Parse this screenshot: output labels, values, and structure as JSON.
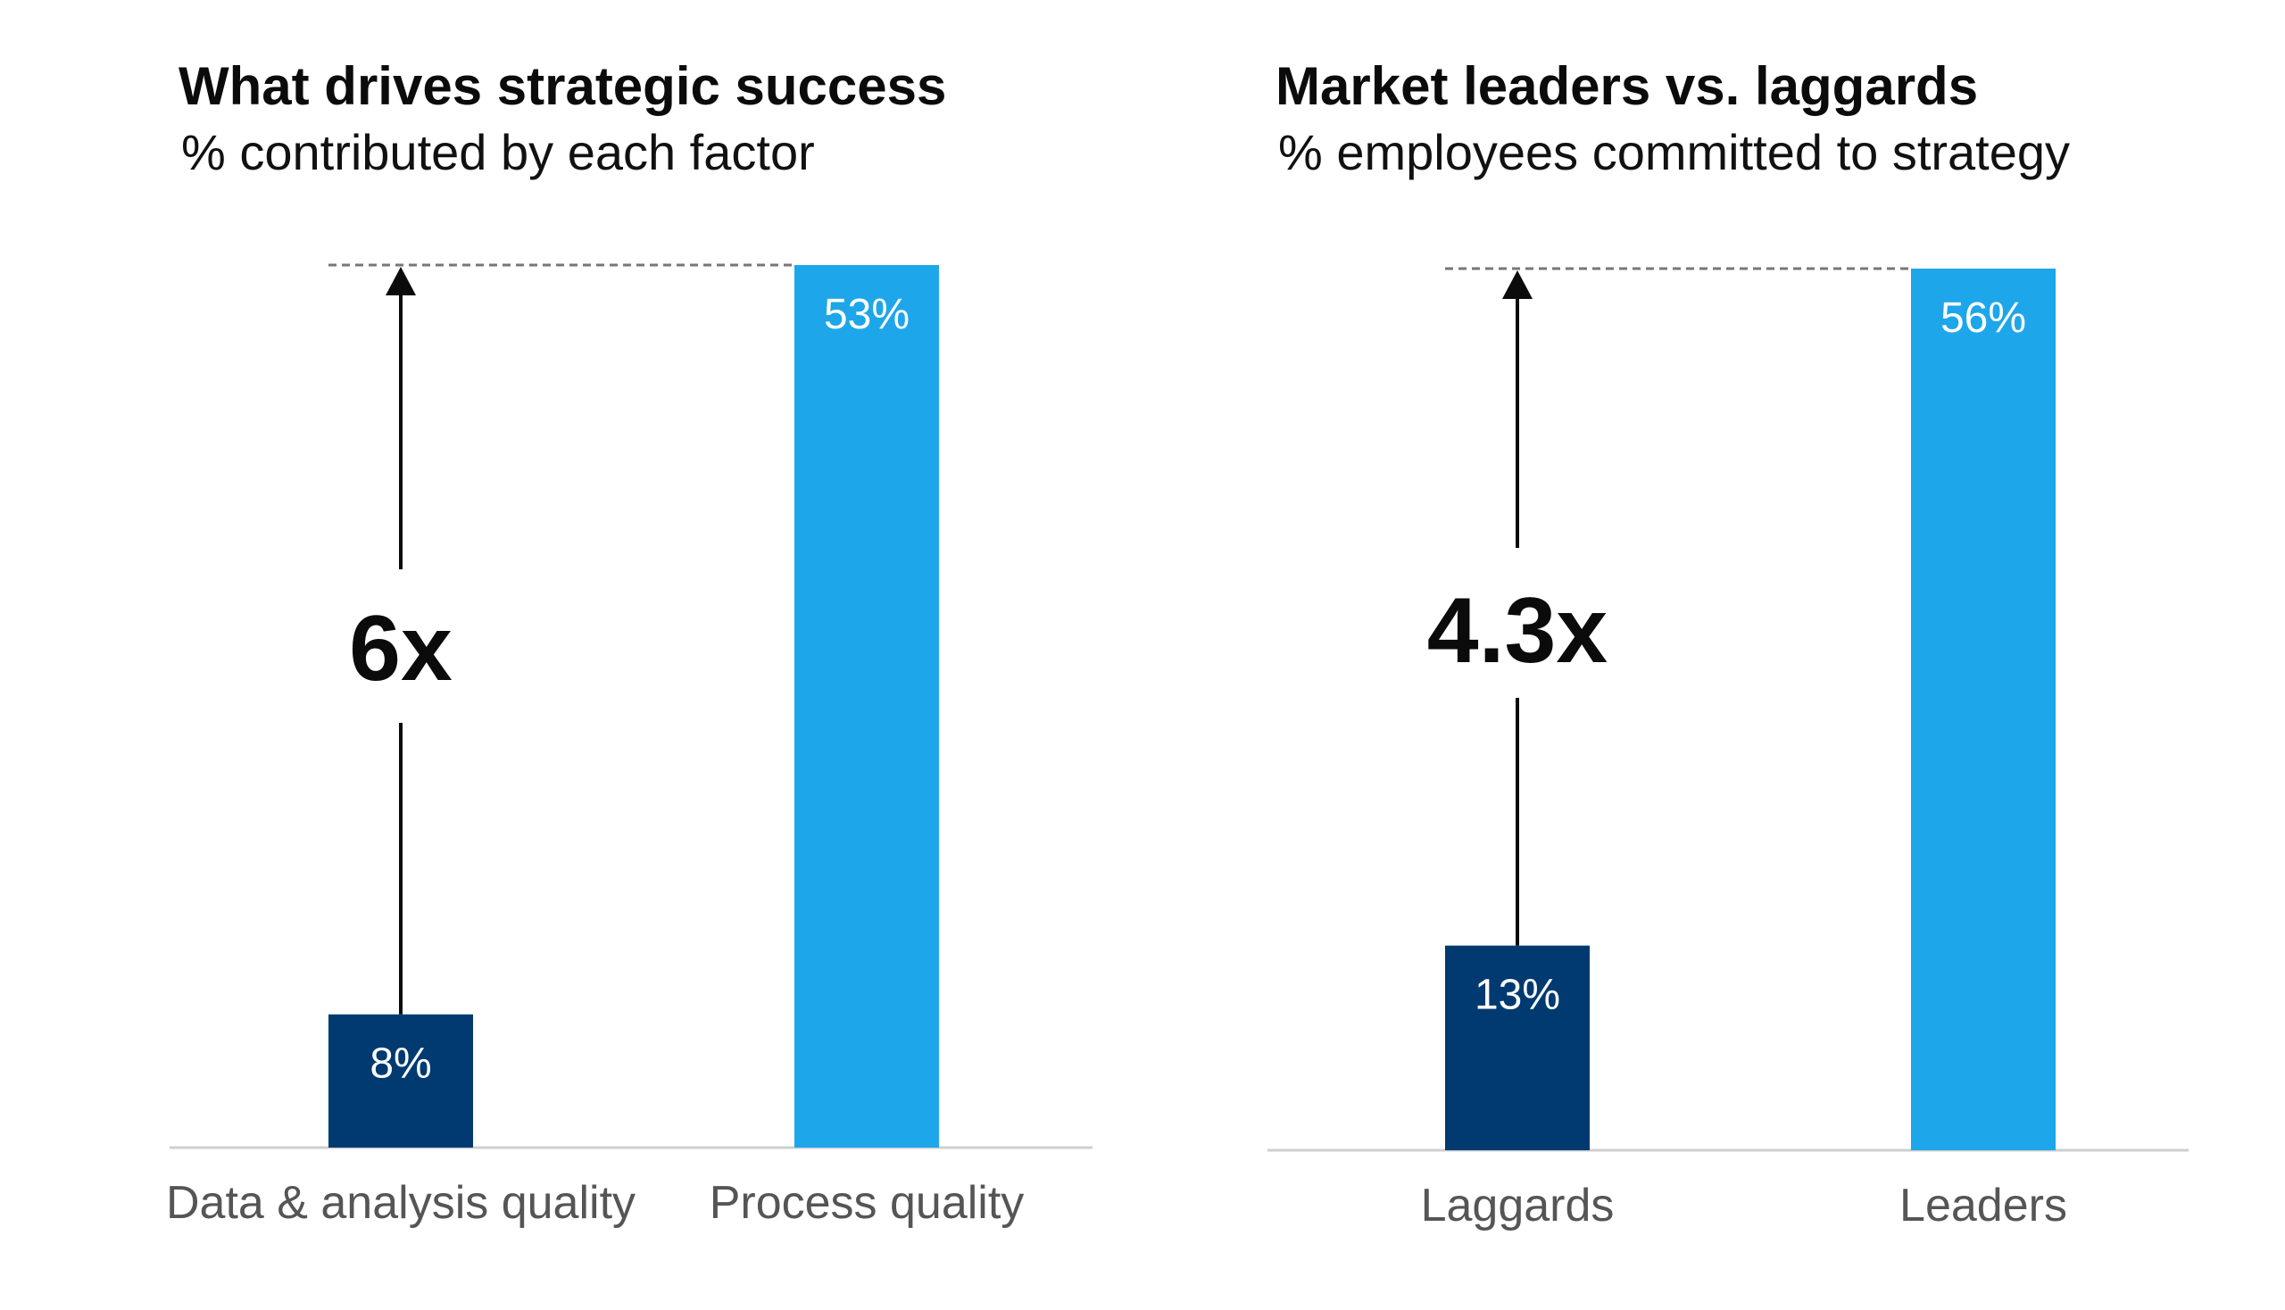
{
  "colors": {
    "dark_bar": "#003a70",
    "light_bar": "#1ea6ea",
    "text_dark": "#0b0b0b",
    "text_gray": "#555555",
    "baseline": "#cfcfcf",
    "dashed_line": "#777777"
  },
  "chart_data": [
    {
      "type": "bar",
      "title": "What drives strategic success",
      "subtitle": "% contributed by each factor",
      "categories": [
        "Data & analysis quality",
        "Process quality"
      ],
      "values": [
        8,
        53
      ],
      "value_labels": [
        "8%",
        "53%"
      ],
      "multiplier_label": "6x",
      "ylim": [
        0,
        53
      ]
    },
    {
      "type": "bar",
      "title": "Market leaders vs. laggards",
      "subtitle": "% employees committed to strategy",
      "categories": [
        "Laggards",
        "Leaders"
      ],
      "values": [
        13,
        56
      ],
      "value_labels": [
        "13%",
        "56%"
      ],
      "multiplier_label": "4.3x",
      "ylim": [
        0,
        56
      ]
    }
  ]
}
